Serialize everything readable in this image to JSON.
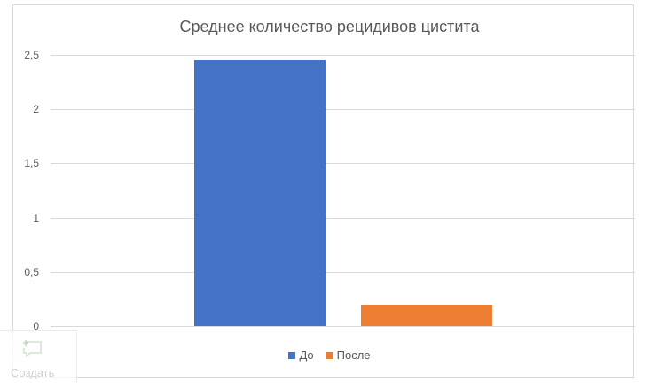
{
  "chart_data": {
    "type": "bar",
    "title": "Среднее количество рецидивов цистита",
    "categories": [
      ""
    ],
    "series": [
      {
        "name": "До",
        "values": [
          2.45
        ],
        "color": "#4472c4"
      },
      {
        "name": "После",
        "values": [
          0.2
        ],
        "color": "#ed7d31"
      }
    ],
    "xlabel": "",
    "ylabel": "",
    "ylim": [
      0,
      2.5
    ],
    "yticks": [
      "0",
      "0,5",
      "1",
      "1,5",
      "2",
      "2,5"
    ],
    "grid": true,
    "legend_position": "bottom"
  },
  "overlay": {
    "label": "Создать",
    "icon": "add-comment-icon"
  }
}
